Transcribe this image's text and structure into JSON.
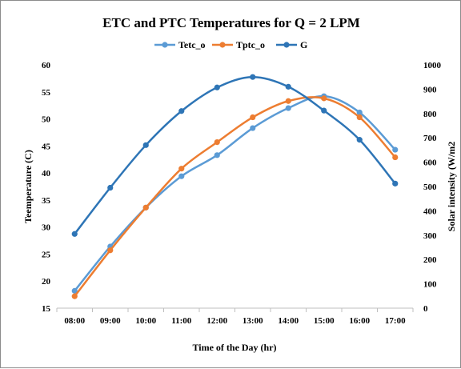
{
  "chart_data": {
    "type": "line",
    "title": "ETC and PTC Temperatures for Q = 2 LPM",
    "xlabel": "Time  of the Day (hr)",
    "ylabel": "Teemperature (C)",
    "y2label": "Solar intensity  (W/m2",
    "categories": [
      "08:00",
      "09:00",
      "10:00",
      "11:00",
      "12:00",
      "13:00",
      "14:00",
      "15:00",
      "16:00",
      "17:00"
    ],
    "ylim": [
      15,
      60
    ],
    "yticks": [
      "15",
      "20",
      "25",
      "30",
      "35",
      "40",
      "45",
      "50",
      "55",
      "60"
    ],
    "y2lim": [
      0,
      1000
    ],
    "y2ticks": [
      "0",
      "100",
      "200",
      "300",
      "400",
      "500",
      "600",
      "700",
      "800",
      "900",
      "1000"
    ],
    "grid": false,
    "legend_position": "top",
    "series": [
      {
        "name": "Tetc_o",
        "axis": "left",
        "color": "#5b9bd5",
        "values": [
          18.2,
          26.4,
          33.6,
          39.4,
          43.3,
          48.3,
          52.0,
          54.2,
          51.2,
          44.3
        ]
      },
      {
        "name": "Tptc_o",
        "axis": "left",
        "color": "#ed7d31",
        "values": [
          17.2,
          25.7,
          33.6,
          40.8,
          45.7,
          50.3,
          53.3,
          53.8,
          50.3,
          42.9
        ]
      },
      {
        "name": "G",
        "axis": "right",
        "color": "#2e75b6",
        "values": [
          305,
          495,
          670,
          810,
          907,
          950,
          910,
          812,
          692,
          512
        ]
      }
    ]
  }
}
